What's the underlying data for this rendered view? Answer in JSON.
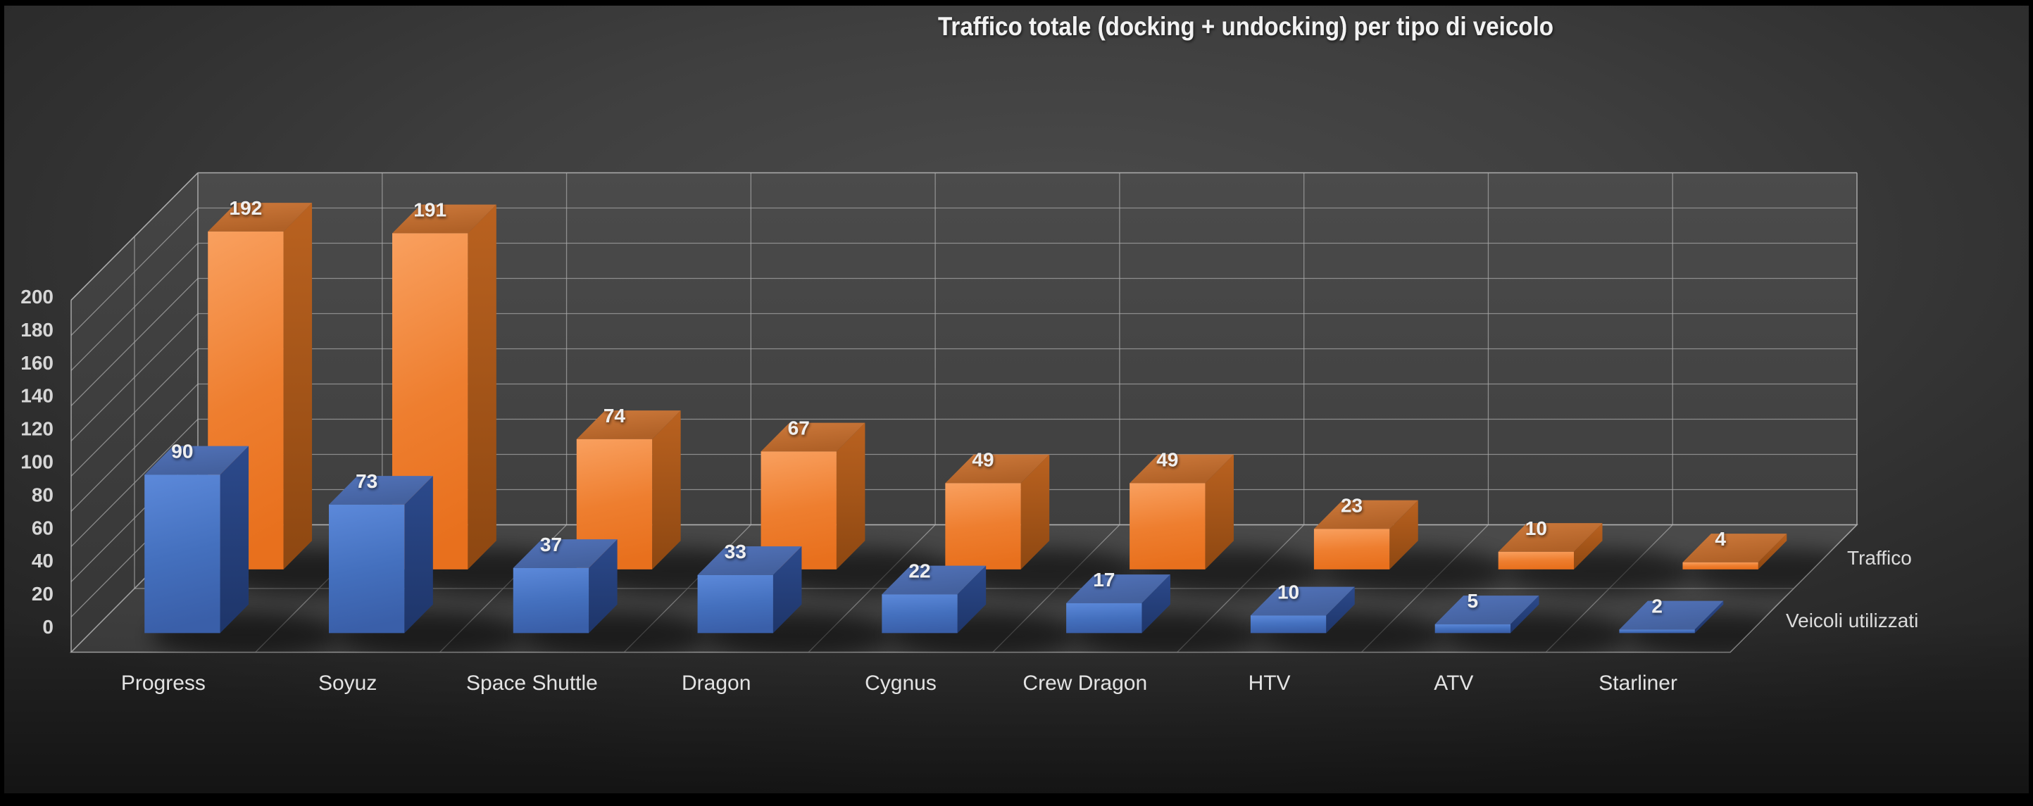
{
  "title": "Traffico totale (docking + undocking) per tipo di veicolo",
  "chart_data": {
    "type": "bar",
    "variant": "3d-column",
    "title": "Traffico totale (docking + undocking) per tipo di veicolo",
    "categories": [
      "Progress",
      "Soyuz",
      "Space Shuttle",
      "Dragon",
      "Cygnus",
      "Crew Dragon",
      "HTV",
      "ATV",
      "Starliner"
    ],
    "series": [
      {
        "name": "Veicoli utilizzati",
        "depth_row": "front",
        "color": "#4472C4",
        "values": [
          90,
          73,
          37,
          33,
          22,
          17,
          10,
          5,
          2
        ]
      },
      {
        "name": "Traffico",
        "depth_row": "back",
        "color": "#ED7D31",
        "values": [
          192,
          191,
          74,
          67,
          49,
          49,
          23,
          10,
          4
        ]
      }
    ],
    "value_axis": {
      "min": 0,
      "max": 200,
      "step": 20,
      "tick_labels": [
        "0",
        "20",
        "40",
        "60",
        "80",
        "100",
        "120",
        "140",
        "160",
        "180",
        "200"
      ]
    },
    "data_labels": true,
    "grid": true,
    "legend": "none",
    "background_theme": "dark",
    "colors": {
      "background_center": "#4C4C4C",
      "background_edge": "#242424",
      "wall": "#474747",
      "floor": "#464646",
      "gridline": "#A6A6A6",
      "blue_series": "#4472C4",
      "orange_series": "#ED7D31",
      "label_text": "#EFEFEF"
    }
  }
}
